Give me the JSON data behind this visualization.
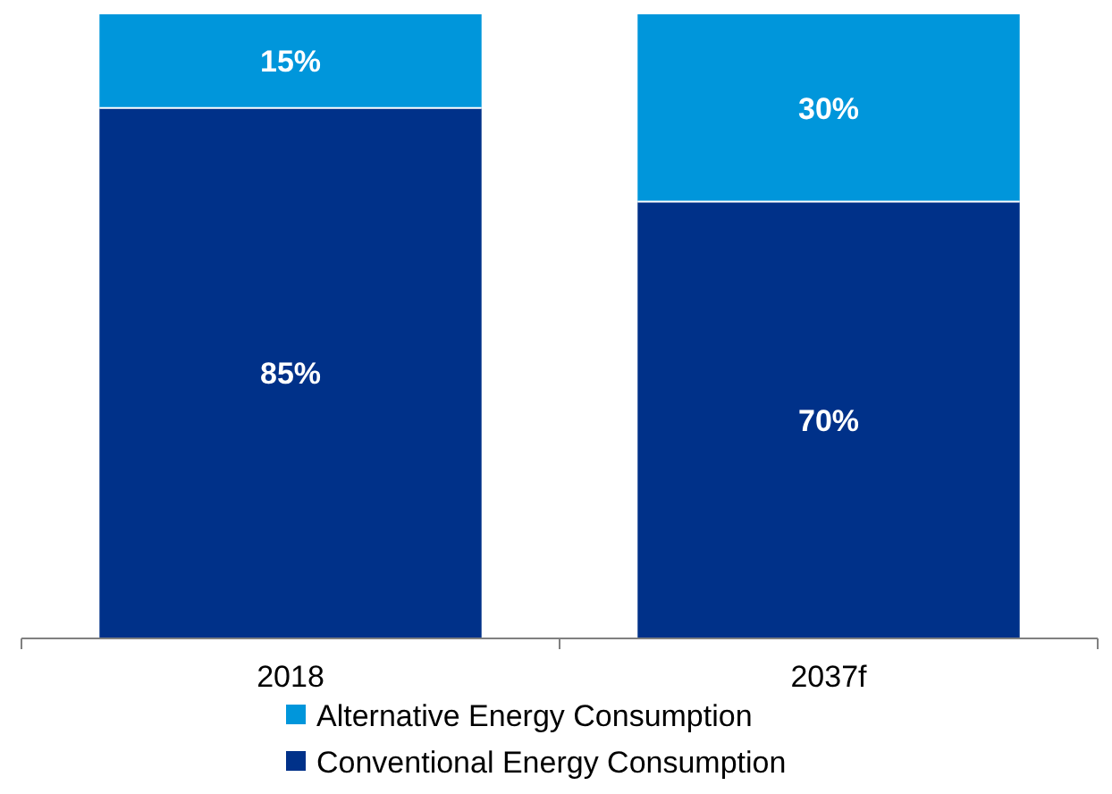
{
  "chart_data": {
    "type": "bar",
    "stacked": true,
    "categories": [
      "2018",
      "2037f"
    ],
    "series": [
      {
        "name": "Conventional Energy Consumption",
        "color": "#003189",
        "values": [
          85,
          70
        ],
        "value_labels": [
          "85%",
          "70%"
        ]
      },
      {
        "name": "Alternative Energy Consumption",
        "color": "#0096db",
        "values": [
          15,
          30
        ],
        "value_labels": [
          "15%",
          "30%"
        ]
      }
    ],
    "legend": "bottom"
  }
}
